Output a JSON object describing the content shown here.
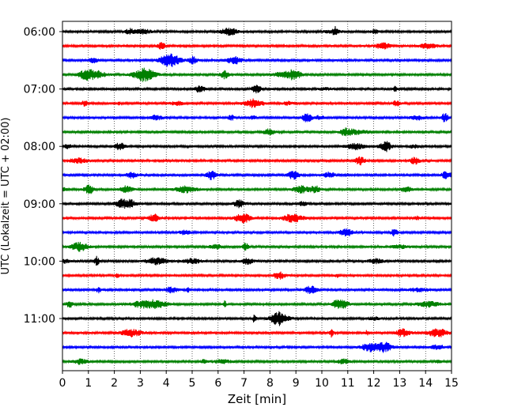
{
  "chart_data": {
    "type": "line",
    "title": "",
    "xlabel": "Zeit  [min]",
    "ylabel": "UTC (Lokalzeit = UTC + 02:00)",
    "xlim": [
      0,
      15
    ],
    "x_ticks": [
      "0",
      "1",
      "2",
      "3",
      "4",
      "5",
      "6",
      "7",
      "8",
      "9",
      "10",
      "11",
      "12",
      "13",
      "14",
      "15"
    ],
    "y_tick_labels": [
      "06:00",
      "07:00",
      "08:00",
      "09:00",
      "10:00",
      "11:00"
    ],
    "grid": "vertical dotted lines at each minute",
    "row_interval_minutes": 15,
    "colors_cycle": [
      "#000000",
      "#ff0000",
      "#0000ff",
      "#008000"
    ],
    "series": [
      {
        "start": "06:00",
        "color": "#000000"
      },
      {
        "start": "06:15",
        "color": "#ff0000"
      },
      {
        "start": "06:30",
        "color": "#0000ff"
      },
      {
        "start": "06:45",
        "color": "#008000"
      },
      {
        "start": "07:00",
        "color": "#000000"
      },
      {
        "start": "07:15",
        "color": "#ff0000"
      },
      {
        "start": "07:30",
        "color": "#0000ff"
      },
      {
        "start": "07:45",
        "color": "#008000"
      },
      {
        "start": "08:00",
        "color": "#000000"
      },
      {
        "start": "08:15",
        "color": "#ff0000"
      },
      {
        "start": "08:30",
        "color": "#0000ff"
      },
      {
        "start": "08:45",
        "color": "#008000"
      },
      {
        "start": "09:00",
        "color": "#000000"
      },
      {
        "start": "09:15",
        "color": "#ff0000"
      },
      {
        "start": "09:30",
        "color": "#0000ff"
      },
      {
        "start": "09:45",
        "color": "#008000"
      },
      {
        "start": "10:00",
        "color": "#000000"
      },
      {
        "start": "10:15",
        "color": "#ff0000"
      },
      {
        "start": "10:30",
        "color": "#0000ff"
      },
      {
        "start": "10:45",
        "color": "#008000"
      },
      {
        "start": "11:00",
        "color": "#000000"
      },
      {
        "start": "11:15",
        "color": "#ff0000"
      },
      {
        "start": "11:30",
        "color": "#0000ff"
      },
      {
        "start": "11:45",
        "color": "#008000"
      }
    ]
  }
}
